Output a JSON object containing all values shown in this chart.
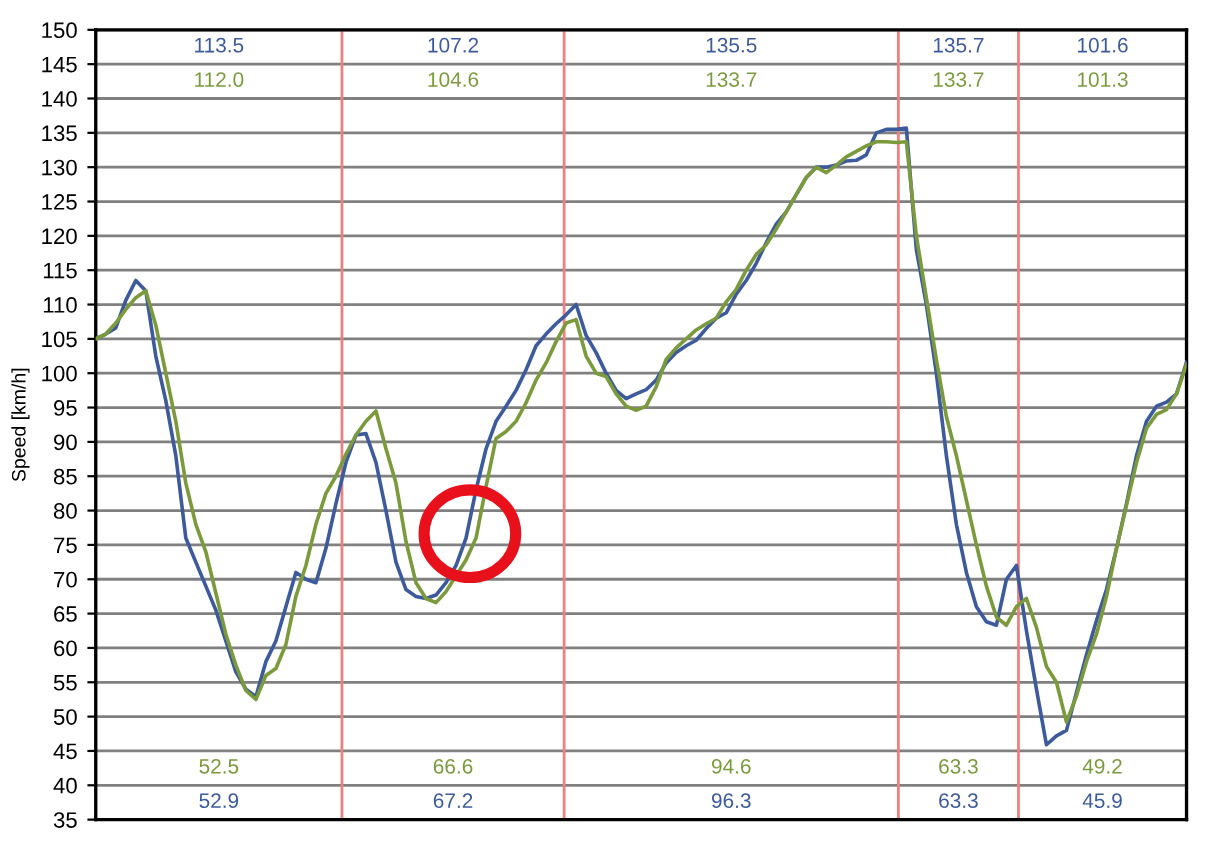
{
  "chart_data": {
    "type": "line",
    "ylabel": "Speed [km/h]",
    "categories": [
      null,
      null,
      null,
      null,
      null,
      null,
      null,
      null,
      null,
      null,
      null,
      null,
      null,
      null,
      null,
      null,
      null,
      null,
      null,
      null,
      null,
      null,
      null,
      null,
      null,
      null,
      null,
      null,
      null,
      null,
      null,
      null,
      null,
      null,
      null,
      null,
      null,
      null,
      null,
      null,
      null,
      null,
      null,
      null,
      null,
      null,
      null,
      null,
      null,
      null,
      null,
      null,
      null,
      null,
      null,
      null,
      null,
      null,
      null,
      null,
      null,
      null,
      null,
      null,
      null,
      null,
      null,
      null,
      null,
      null,
      null,
      null,
      null,
      null,
      null,
      null,
      null,
      null,
      null,
      null,
      null,
      null,
      null,
      null,
      null,
      null,
      null,
      null,
      null,
      null,
      null,
      null,
      null,
      null,
      null,
      null,
      null,
      null,
      null,
      null,
      null,
      null,
      null,
      null,
      null,
      null,
      null,
      null,
      null,
      null
    ],
    "ylim": [
      35,
      150
    ],
    "yticks": [
      35,
      40,
      45,
      50,
      55,
      60,
      65,
      70,
      75,
      80,
      85,
      90,
      95,
      100,
      105,
      110,
      115,
      120,
      125,
      130,
      135,
      140,
      145,
      150
    ],
    "tick_labels": "y",
    "grid": "y",
    "line_style": "solid",
    "series": [
      {
        "color": "#3c5a9c",
        "values": [
          105,
          105.7,
          106.6,
          110.6,
          113.5,
          112,
          102.5,
          96,
          88,
          76,
          72.5,
          69,
          65.5,
          61,
          56.5,
          54,
          52.9,
          58,
          61,
          66,
          71,
          70,
          69.5,
          74.5,
          81,
          87,
          91,
          91.2,
          87,
          80,
          72.5,
          68.5,
          67.5,
          67.2,
          67.7,
          69.5,
          72,
          76,
          83,
          89,
          93,
          95.2,
          97.5,
          100.5,
          104,
          105.7,
          107.2,
          108.5,
          110,
          105.5,
          103,
          100,
          97.5,
          96.3,
          97,
          97.6,
          99,
          101.5,
          103,
          104,
          104.8,
          106.5,
          108,
          108.8,
          111.5,
          113.5,
          116,
          119,
          121.7,
          123.5,
          126,
          128.5,
          130,
          130,
          130.3,
          130.9,
          131,
          131.8,
          135,
          135.5,
          135.5,
          135.7,
          118,
          110,
          100,
          88,
          78,
          71,
          66,
          63.8,
          63.3,
          70,
          72,
          62.5,
          54,
          45.9,
          47.2,
          48,
          53.5,
          59,
          64,
          68.5,
          74.5,
          81,
          88,
          93,
          95.2,
          95.8,
          97,
          101.6
        ]
      },
      {
        "color": "#7a9a3c",
        "values": [
          105,
          105.7,
          107.3,
          109.3,
          111,
          112,
          107,
          100,
          93,
          84,
          78,
          74,
          68,
          62,
          57.5,
          53.8,
          52.5,
          56,
          57,
          60.5,
          67.5,
          72,
          78,
          82.5,
          85,
          88.2,
          91,
          93,
          94.5,
          89,
          84,
          75.5,
          69.5,
          67.2,
          66.6,
          68.2,
          70.5,
          72.8,
          76,
          83.5,
          90.5,
          91.5,
          93,
          95.7,
          99,
          101.5,
          104.6,
          107.3,
          107.8,
          102.5,
          100,
          99.5,
          97,
          95.2,
          94.6,
          95.2,
          98,
          102,
          103.7,
          105,
          106.3,
          107.2,
          108,
          110.4,
          112.2,
          115,
          117.3,
          118.7,
          121,
          123.5,
          126,
          128.5,
          130,
          129.2,
          130.3,
          131.5,
          132.3,
          133.1,
          133.7,
          133.7,
          133.6,
          133.7,
          120,
          111,
          102,
          93.7,
          88,
          81.5,
          75,
          69,
          64.5,
          63.3,
          66,
          67.2,
          63,
          57.3,
          55,
          49.2,
          53,
          58,
          62,
          67.5,
          74.5,
          80.8,
          87,
          92,
          94,
          94.7,
          97,
          101.3
        ]
      }
    ],
    "legend": false,
    "marker": "none",
    "annotations": [
      "113.5",
      "112.0",
      "52.5",
      "52.9",
      "107.2",
      "104.6",
      "66.6",
      "67.2",
      "135.5",
      "133.7",
      "94.6",
      "96.3",
      "135.7",
      "133.7",
      "63.3",
      "63.3",
      "101.6",
      "101.3",
      "49.2",
      "45.9"
    ]
  }
}
